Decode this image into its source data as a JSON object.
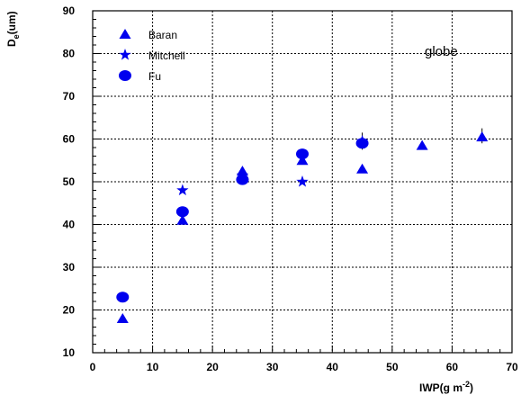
{
  "chart_data": {
    "type": "scatter",
    "title": "",
    "xlabel_main": "IWP(g m",
    "xlabel_sup": "-2",
    "xlabel_close": ")",
    "ylabel_main": "D",
    "ylabel_sub": "e",
    "ylabel_unit": "(um)",
    "annotation": "globe",
    "xlim": [
      0,
      70
    ],
    "ylim": [
      10,
      90
    ],
    "x_ticks": [
      "0",
      "10",
      "20",
      "30",
      "40",
      "50",
      "60",
      "70"
    ],
    "y_ticks": [
      "10",
      "20",
      "30",
      "40",
      "50",
      "60",
      "70",
      "80",
      "90"
    ],
    "grid": true,
    "legend_position": "top-left",
    "marker_color": "#0000ee",
    "series": [
      {
        "name": "Baran",
        "marker": "triangle",
        "points": [
          {
            "x": 5,
            "y": 18
          },
          {
            "x": 15,
            "y": 41
          },
          {
            "x": 25,
            "y": 52.5
          },
          {
            "x": 35,
            "y": 55
          },
          {
            "x": 45,
            "y": 53
          },
          {
            "x": 55,
            "y": 58.5
          },
          {
            "x": 65,
            "y": 60.5
          }
        ]
      },
      {
        "name": "Mitchell",
        "marker": "star",
        "points": [
          {
            "x": 15,
            "y": 48
          },
          {
            "x": 25,
            "y": 51.5
          },
          {
            "x": 35,
            "y": 50
          },
          {
            "x": 45,
            "y": 59.5
          }
        ]
      },
      {
        "name": "Fu",
        "marker": "circle",
        "points": [
          {
            "x": 5,
            "y": 23
          },
          {
            "x": 15,
            "y": 43
          },
          {
            "x": 25,
            "y": 50.5
          },
          {
            "x": 35,
            "y": 56.5
          },
          {
            "x": 45,
            "y": 59
          }
        ]
      }
    ],
    "error_bars": [
      {
        "x": 45,
        "ylow": 57.5,
        "yhigh": 61.5
      },
      {
        "x": 65,
        "ylow": 59,
        "yhigh": 62.5
      }
    ]
  }
}
